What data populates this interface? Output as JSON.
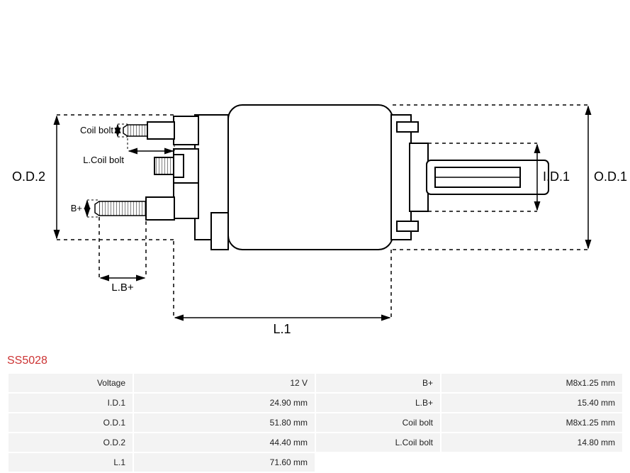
{
  "part_number": "SS5028",
  "diagram": {
    "labels": {
      "od2": "O.D.2",
      "od1": "O.D.1",
      "id1": "I.D.1",
      "l1": "L.1",
      "lb_plus": "L.B+",
      "b_plus": "B+",
      "coil_bolt": "Coil bolt",
      "l_coil_bolt": "L.Coil bolt"
    },
    "stroke_color": "#000000",
    "stroke_width": 2,
    "dash_pattern": "5,5",
    "font_size": 15,
    "font_family": "sans-serif"
  },
  "specs": {
    "rows": [
      {
        "label1": "Voltage",
        "value1": "12 V",
        "label2": "B+",
        "value2": "M8x1.25 mm"
      },
      {
        "label1": "I.D.1",
        "value1": "24.90 mm",
        "label2": "L.B+",
        "value2": "15.40 mm"
      },
      {
        "label1": "O.D.1",
        "value1": "51.80 mm",
        "label2": "Coil bolt",
        "value2": "M8x1.25 mm"
      },
      {
        "label1": "O.D.2",
        "value1": "44.40 mm",
        "label2": "L.Coil bolt",
        "value2": "14.80 mm"
      },
      {
        "label1": "L.1",
        "value1": "71.60 mm",
        "label2": "",
        "value2": ""
      }
    ]
  }
}
